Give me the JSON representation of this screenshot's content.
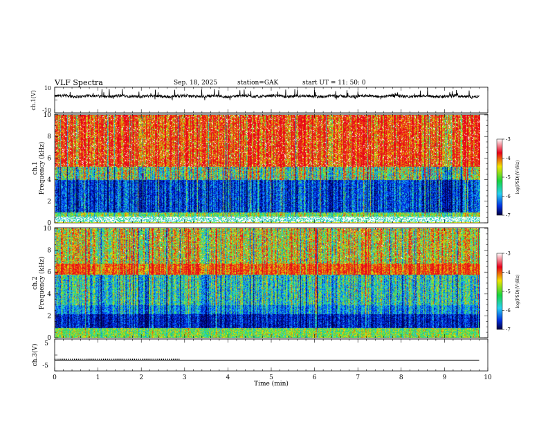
{
  "header": {
    "title": "VLF  Spectra",
    "date": "Sep. 18, 2025",
    "station": "station=GAK",
    "start": "start  UT  =   11: 50: 0"
  },
  "chart_data": [
    {
      "type": "line",
      "panel": "ch1-waveform",
      "ylabel": "ch.1(V)",
      "ylim": [
        -10,
        10
      ],
      "yticks": [
        "10",
        "-10"
      ],
      "xlim": [
        0,
        9.8
      ],
      "color": "#000000",
      "description_level": "noisy waveform centered near 3 V with spikes up to about 9 V"
    },
    {
      "type": "heatmap",
      "panel": "ch1-spectrogram",
      "ylabel_line1": "ch.1",
      "ylabel_line2": "Frequency (kHz)",
      "ylim": [
        0,
        10
      ],
      "yticks": [
        "0",
        "2",
        "4",
        "6",
        "8",
        "10"
      ],
      "colorbar": {
        "label": "log(PSD)(V²/Hz)",
        "range": [
          -7,
          -3
        ],
        "ticks": [
          "-3",
          "-4",
          "-5",
          "-6",
          "-7"
        ]
      }
    },
    {
      "type": "heatmap",
      "panel": "ch2-spectrogram",
      "ylabel_line1": "ch.2",
      "ylabel_line2": "Frequency (kHz)",
      "ylim": [
        0,
        10
      ],
      "yticks": [
        "0",
        "2",
        "4",
        "6",
        "8",
        "10"
      ],
      "colorbar": {
        "label": "log(PSD)(V²/Hz)",
        "range": [
          -7,
          -3
        ],
        "ticks": [
          "-3",
          "-4",
          "-5",
          "-6",
          "-7"
        ]
      }
    },
    {
      "type": "line",
      "panel": "ch3-trace",
      "ylabel": "ch.3(V)",
      "ylim": [
        -5,
        5
      ],
      "yticks": [
        "5",
        "-5"
      ],
      "x": [
        0,
        2.9,
        2.9,
        9.8
      ],
      "y": [
        -1.6,
        -1.6,
        -1.6,
        -1.6
      ],
      "xlim": [
        0,
        10
      ],
      "xticks": [
        "0",
        "1",
        "2",
        "3",
        "4",
        "5",
        "6",
        "7",
        "8",
        "9",
        "10"
      ],
      "xlabel": "Time  (min)"
    }
  ],
  "colors": {
    "red": "#e8001a",
    "yellow": "#f0e400",
    "green": "#18d440",
    "cyan": "#28d0f0",
    "blue": "#0030e0",
    "navy": "#000060"
  }
}
